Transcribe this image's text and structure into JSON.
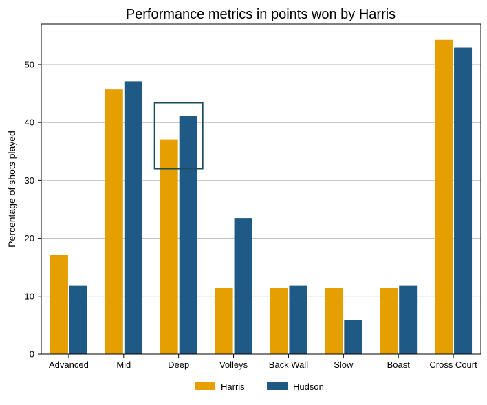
{
  "chart_data": {
    "type": "bar",
    "title": "Performance metrics in points won by Harris",
    "xlabel": "",
    "ylabel": "Percentage of shots played",
    "categories": [
      "Advanced",
      "Mid",
      "Deep",
      "Volleys",
      "Back Wall",
      "Slow",
      "Boast",
      "Cross Court"
    ],
    "series": [
      {
        "name": "Harris",
        "color": "#E69F00",
        "values": [
          17.1,
          45.7,
          37.1,
          11.4,
          11.4,
          11.4,
          11.4,
          54.3
        ]
      },
      {
        "name": "Hudson",
        "color": "#1F5A87",
        "values": [
          11.8,
          47.1,
          41.2,
          23.5,
          11.8,
          5.9,
          11.8,
          52.9
        ]
      }
    ],
    "ylim": [
      0,
      57
    ],
    "yticks": [
      0,
      10,
      20,
      30,
      40,
      50
    ],
    "grid": true,
    "legend_position": "bottom",
    "highlight": {
      "category": "Deep",
      "y_range": [
        32,
        43.4
      ],
      "color": "#1B4D5E"
    }
  }
}
